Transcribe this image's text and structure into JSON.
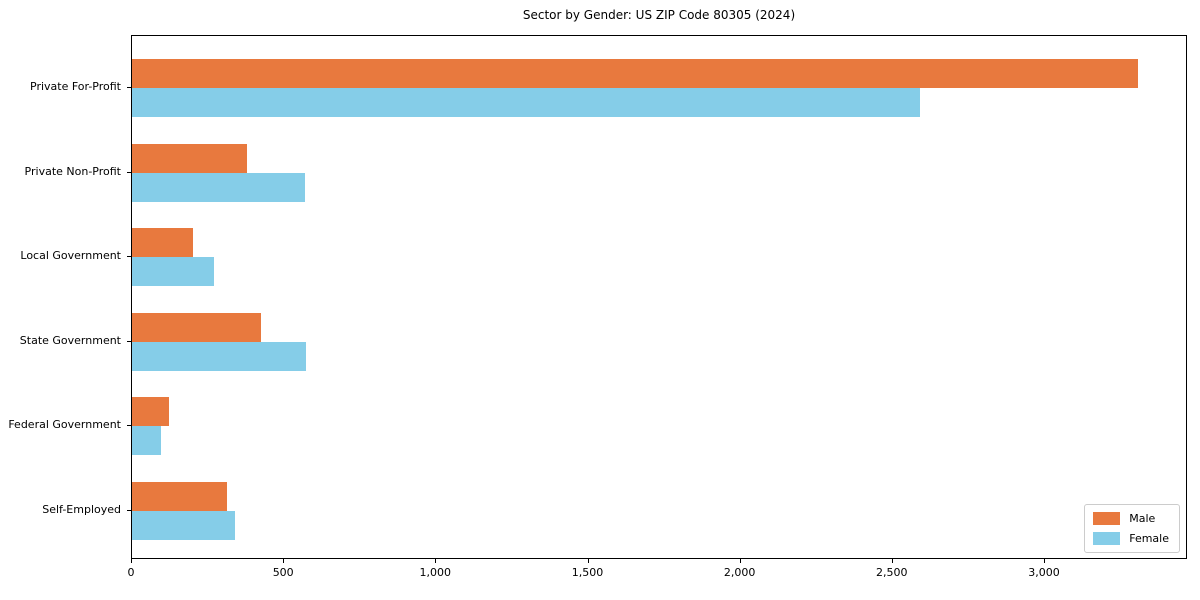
{
  "chart_data": {
    "type": "bar",
    "orientation": "horizontal",
    "title": "Sector by Gender: US ZIP Code 80305 (2024)",
    "categories": [
      "Private For-Profit",
      "Private Non-Profit",
      "Local Government",
      "State Government",
      "Federal Government",
      "Self-Employed"
    ],
    "series": [
      {
        "name": "Male",
        "color": "#E8793E",
        "values": [
          3305,
          378,
          200,
          425,
          121,
          313
        ]
      },
      {
        "name": "Female",
        "color": "#85CDE8",
        "values": [
          2588,
          567,
          269,
          573,
          95,
          337
        ]
      }
    ],
    "x_ticks": [
      0,
      500,
      1000,
      1500,
      2000,
      2500,
      3000
    ],
    "x_tick_labels": [
      "0",
      "500",
      "1,000",
      "1,500",
      "2,000",
      "2,500",
      "3,000"
    ],
    "xlim": [
      0,
      3470
    ],
    "xlabel": "",
    "ylabel": "",
    "grid": false,
    "legend_position": "lower right"
  }
}
